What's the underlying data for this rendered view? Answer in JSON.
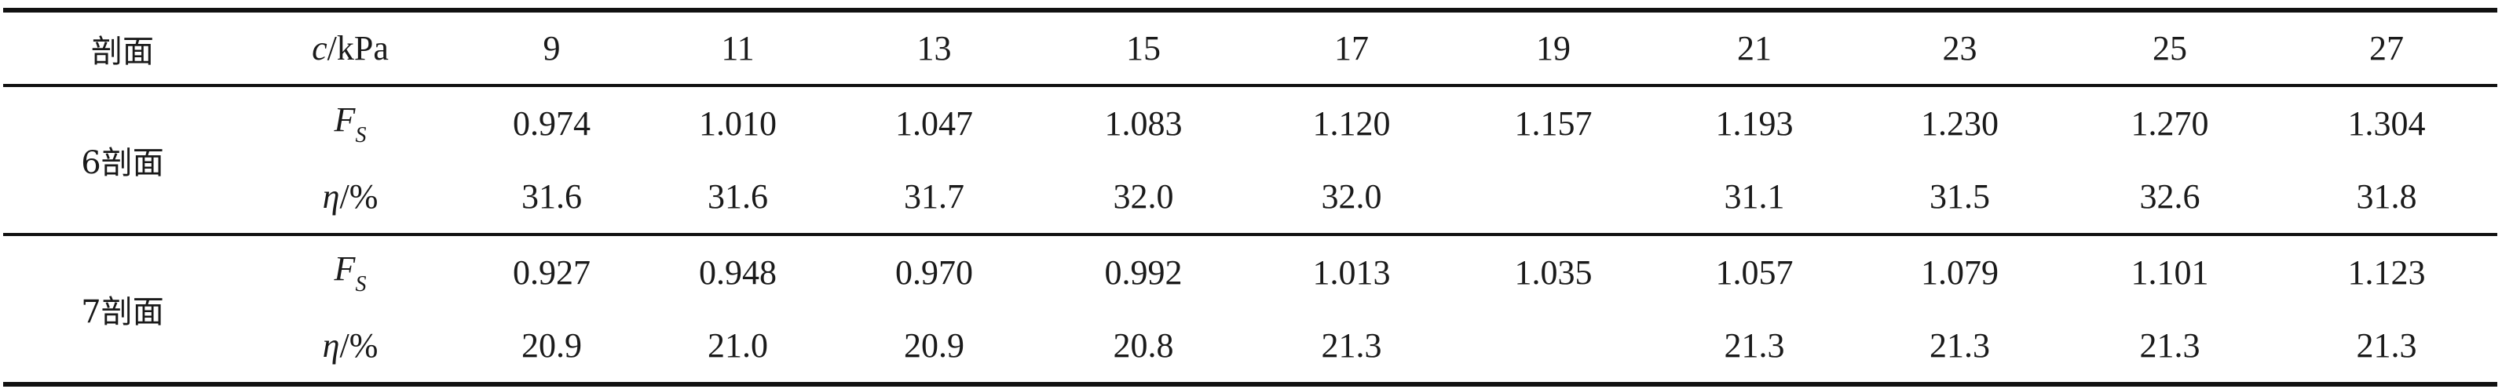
{
  "header": {
    "section_label": "剖面",
    "param_label_var": "c",
    "param_label_unit": "/kPa",
    "c_values": [
      "9",
      "11",
      "13",
      "15",
      "17",
      "19",
      "21",
      "23",
      "25",
      "27"
    ]
  },
  "rows": [
    {
      "section": "6剖面",
      "fs_label_main": "F",
      "fs_label_sub": "S",
      "eta_label_var": "η",
      "eta_label_unit": "/%",
      "fs": [
        "0.974",
        "1.010",
        "1.047",
        "1.083",
        "1.120",
        "1.157",
        "1.193",
        "1.230",
        "1.270",
        "1.304"
      ],
      "eta": [
        "31.6",
        "31.6",
        "31.7",
        "32.0",
        "32.0",
        "",
        "31.1",
        "31.5",
        "32.6",
        "31.8"
      ]
    },
    {
      "section": "7剖面",
      "fs_label_main": "F",
      "fs_label_sub": "S",
      "eta_label_var": "η",
      "eta_label_unit": "/%",
      "fs": [
        "0.927",
        "0.948",
        "0.970",
        "0.992",
        "1.013",
        "1.035",
        "1.057",
        "1.079",
        "1.101",
        "1.123"
      ],
      "eta": [
        "20.9",
        "21.0",
        "20.9",
        "20.8",
        "21.3",
        "",
        "21.3",
        "21.3",
        "21.3",
        "21.3"
      ]
    }
  ]
}
